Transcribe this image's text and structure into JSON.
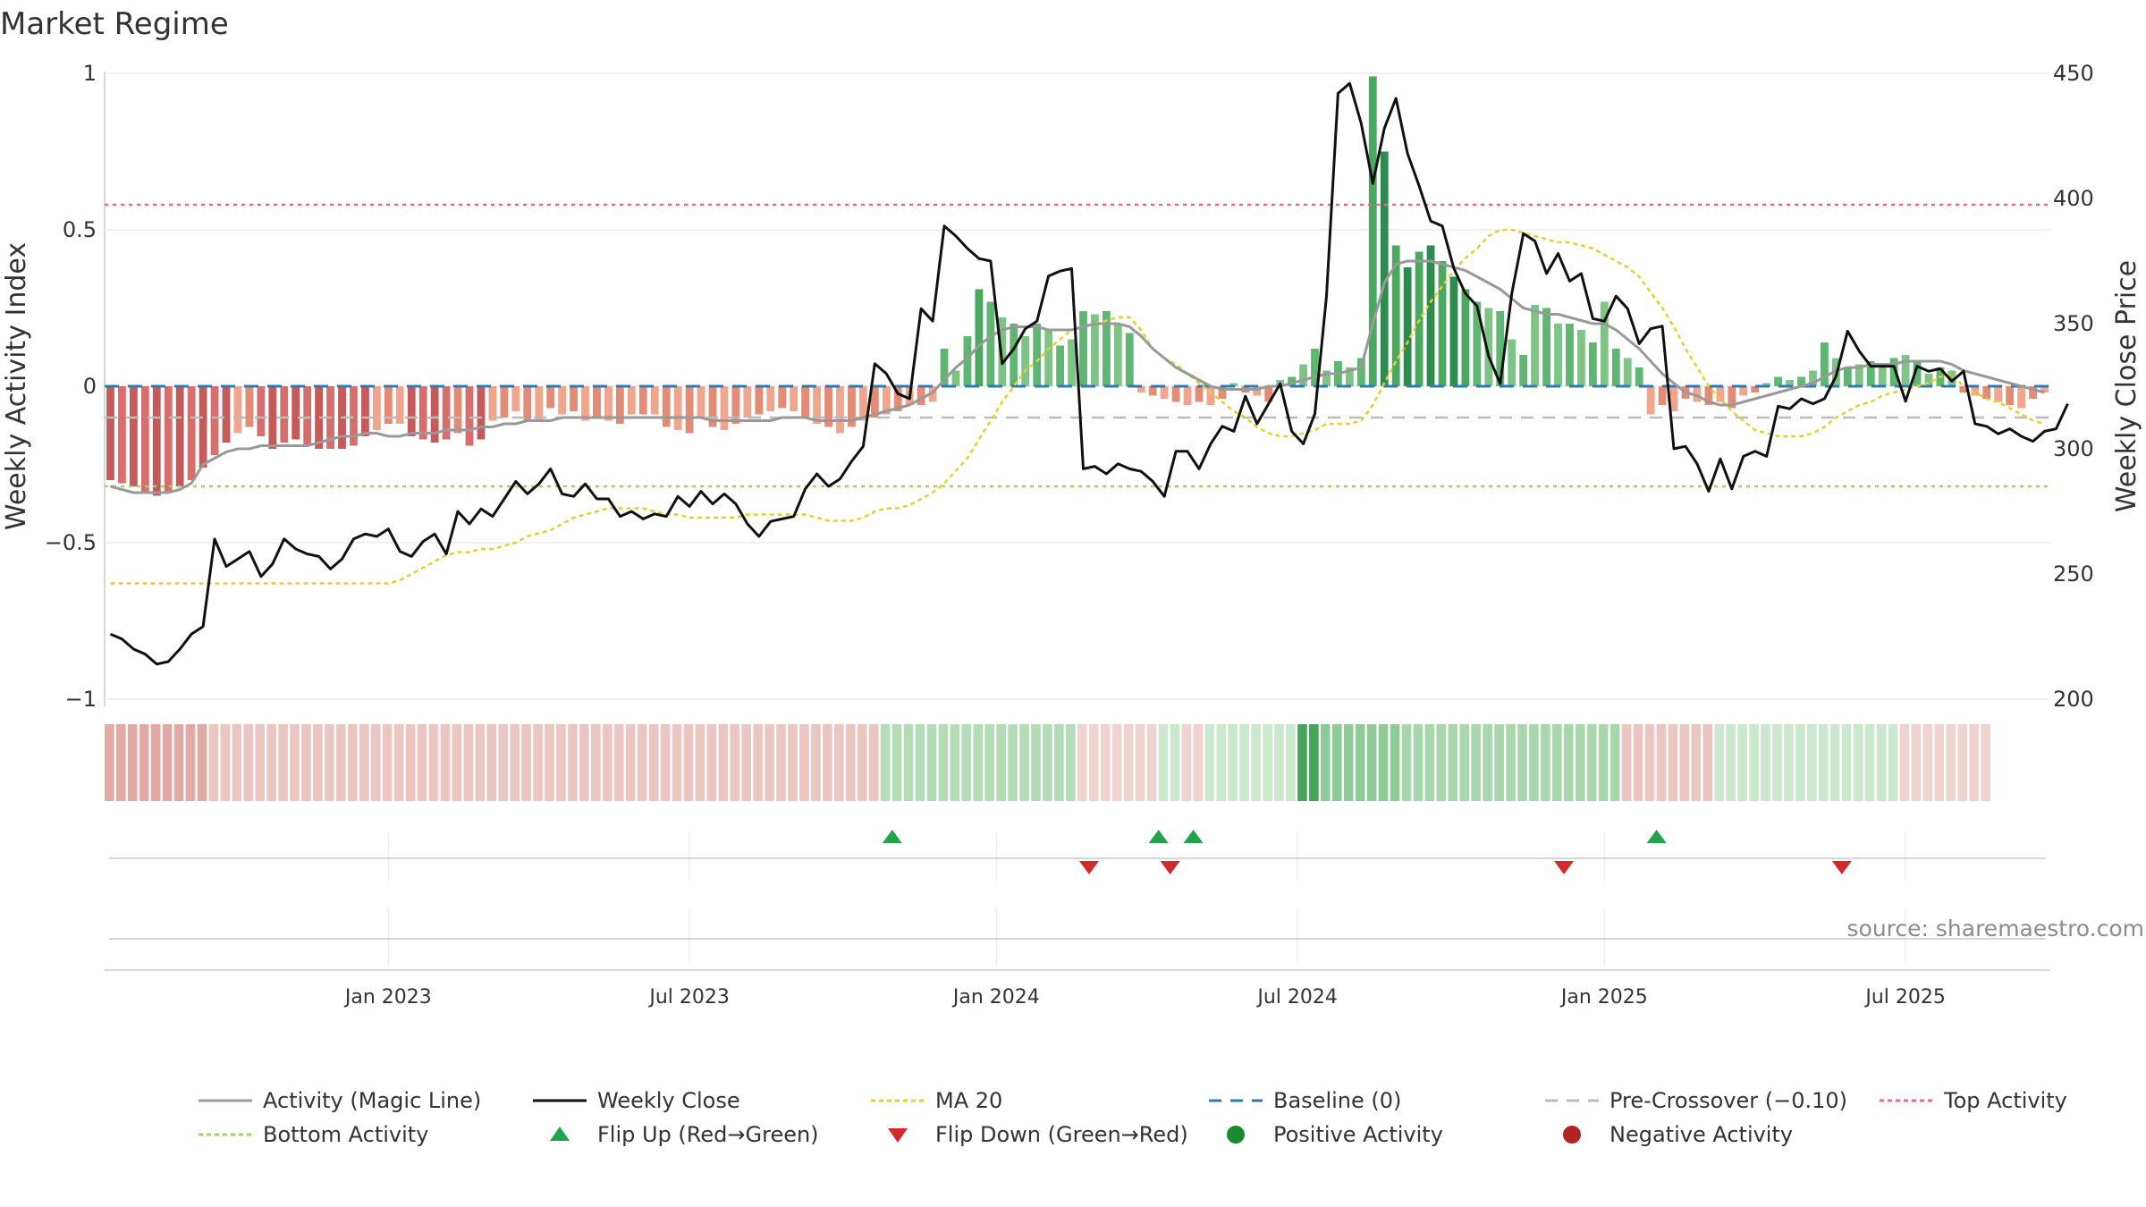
{
  "title": "Market Regime",
  "source": "source: sharemaestro.com",
  "chart_data": {
    "type": "bar",
    "y_left_label": "Weekly Activity Index",
    "y_right_label": "Weekly Close Price",
    "y_left_ticks": [
      {
        "value": 1,
        "label": "1"
      },
      {
        "value": 0.5,
        "label": "0.5"
      },
      {
        "value": 0,
        "label": "0"
      },
      {
        "value": -0.5,
        "label": "−0.5"
      },
      {
        "value": -1,
        "label": "−1"
      }
    ],
    "y_right_ticks": [
      {
        "value": 450,
        "label": "450"
      },
      {
        "value": 400,
        "label": "400"
      },
      {
        "value": 350,
        "label": "350"
      },
      {
        "value": 300,
        "label": "300"
      },
      {
        "value": 250,
        "label": "250"
      },
      {
        "value": 200,
        "label": "200"
      }
    ],
    "ylim_left": [
      -1.0,
      1.0
    ],
    "ylim_right": [
      200,
      450
    ],
    "x_ticks": [
      {
        "week": 24,
        "label": "Jan 2023"
      },
      {
        "week": 50,
        "label": "Jul 2023"
      },
      {
        "week": 76.5,
        "label": "Jan 2024"
      },
      {
        "week": 102.5,
        "label": "Jul 2024"
      },
      {
        "week": 129,
        "label": "Jan 2025"
      },
      {
        "week": 155,
        "label": "Jul 2025"
      }
    ],
    "reference_lines": {
      "top_activity": 0.58,
      "bottom_activity": -0.32,
      "pre_crossover": -0.1,
      "baseline": 0
    },
    "colors": {
      "activity_line": "#999999",
      "close": "#111111",
      "ma20": "#e6cf2e",
      "baseline": "#2c7bb6",
      "pre_crossover": "#bbbbbb",
      "top": "#f06292",
      "bottom": "#9ed46a",
      "flip_up": "#22a24a",
      "flip_down": "#d22a2a",
      "positive": "#1b8a2e",
      "negative": "#b22222"
    },
    "weekly_activity": [
      -0.3,
      -0.31,
      -0.32,
      -0.34,
      -0.35,
      -0.34,
      -0.32,
      -0.3,
      -0.26,
      -0.22,
      -0.18,
      -0.15,
      -0.13,
      -0.16,
      -0.2,
      -0.18,
      -0.17,
      -0.19,
      -0.2,
      -0.2,
      -0.2,
      -0.19,
      -0.16,
      -0.14,
      -0.12,
      -0.12,
      -0.16,
      -0.17,
      -0.18,
      -0.17,
      -0.15,
      -0.19,
      -0.17,
      -0.11,
      -0.1,
      -0.08,
      -0.11,
      -0.11,
      -0.07,
      -0.09,
      -0.08,
      -0.11,
      -0.1,
      -0.11,
      -0.12,
      -0.09,
      -0.09,
      -0.09,
      -0.13,
      -0.14,
      -0.15,
      -0.1,
      -0.13,
      -0.14,
      -0.12,
      -0.1,
      -0.09,
      -0.08,
      -0.07,
      -0.08,
      -0.1,
      -0.12,
      -0.13,
      -0.15,
      -0.13,
      -0.11,
      -0.1,
      -0.09,
      -0.08,
      -0.06,
      -0.06,
      -0.05,
      0.12,
      0.05,
      0.16,
      0.31,
      0.27,
      0.22,
      0.2,
      0.16,
      0.2,
      0.18,
      0.13,
      0.15,
      0.24,
      0.23,
      0.24,
      0.2,
      0.17,
      -0.02,
      -0.03,
      -0.04,
      -0.05,
      -0.06,
      -0.05,
      -0.06,
      -0.04,
      0.01,
      -0.02,
      -0.03,
      -0.05,
      0.02,
      0.03,
      0.07,
      0.12,
      0.05,
      0.08,
      0.06,
      0.09,
      0.99,
      0.75,
      0.45,
      0.38,
      0.43,
      0.45,
      0.4,
      0.35,
      0.31,
      0.27,
      0.25,
      0.24,
      0.15,
      0.1,
      0.26,
      0.25,
      0.2,
      0.2,
      0.18,
      0.14,
      0.27,
      0.12,
      0.09,
      0.06,
      -0.09,
      -0.06,
      -0.08,
      -0.04,
      -0.05,
      -0.06,
      -0.05,
      -0.07,
      -0.03,
      -0.02,
      0.01,
      0.03,
      0.02,
      0.03,
      0.05,
      0.14,
      0.09,
      0.06,
      0.07,
      0.08,
      0.06,
      0.09,
      0.1,
      0.08,
      0.04,
      0.06,
      0.05,
      -0.02,
      -0.03,
      -0.04,
      -0.05,
      -0.06,
      -0.07,
      -0.04,
      -0.02
    ],
    "activity_magic_line": [
      -0.32,
      -0.33,
      -0.34,
      -0.34,
      -0.34,
      -0.34,
      -0.33,
      -0.31,
      -0.25,
      -0.23,
      -0.21,
      -0.2,
      -0.2,
      -0.19,
      -0.19,
      -0.19,
      -0.19,
      -0.19,
      -0.18,
      -0.17,
      -0.16,
      -0.16,
      -0.15,
      -0.15,
      -0.16,
      -0.16,
      -0.15,
      -0.15,
      -0.15,
      -0.14,
      -0.14,
      -0.14,
      -0.13,
      -0.13,
      -0.12,
      -0.12,
      -0.11,
      -0.11,
      -0.11,
      -0.1,
      -0.1,
      -0.1,
      -0.1,
      -0.1,
      -0.1,
      -0.1,
      -0.1,
      -0.1,
      -0.1,
      -0.1,
      -0.1,
      -0.1,
      -0.11,
      -0.11,
      -0.11,
      -0.11,
      -0.11,
      -0.11,
      -0.1,
      -0.1,
      -0.1,
      -0.11,
      -0.11,
      -0.11,
      -0.11,
      -0.1,
      -0.09,
      -0.08,
      -0.07,
      -0.06,
      -0.04,
      -0.02,
      0.02,
      0.06,
      0.09,
      0.13,
      0.16,
      0.18,
      0.19,
      0.19,
      0.19,
      0.18,
      0.18,
      0.18,
      0.19,
      0.2,
      0.2,
      0.2,
      0.19,
      0.16,
      0.12,
      0.09,
      0.06,
      0.04,
      0.02,
      0.0,
      -0.01,
      -0.01,
      -0.01,
      -0.01,
      0.0,
      0.0,
      0.01,
      0.02,
      0.03,
      0.04,
      0.04,
      0.05,
      0.06,
      0.2,
      0.33,
      0.39,
      0.4,
      0.4,
      0.4,
      0.39,
      0.38,
      0.37,
      0.35,
      0.33,
      0.31,
      0.28,
      0.25,
      0.24,
      0.23,
      0.23,
      0.22,
      0.21,
      0.2,
      0.2,
      0.18,
      0.15,
      0.12,
      0.08,
      0.04,
      0.01,
      -0.02,
      -0.03,
      -0.05,
      -0.06,
      -0.06,
      -0.05,
      -0.04,
      -0.03,
      -0.02,
      -0.01,
      0.0,
      0.01,
      0.03,
      0.05,
      0.06,
      0.06,
      0.07,
      0.07,
      0.07,
      0.08,
      0.08,
      0.08,
      0.08,
      0.07,
      0.05,
      0.04,
      0.03,
      0.02,
      0.01,
      0.0,
      -0.01,
      -0.02
    ],
    "ma20": [
      -0.63,
      -0.63,
      -0.63,
      -0.63,
      -0.63,
      -0.63,
      -0.63,
      -0.63,
      -0.63,
      -0.63,
      -0.63,
      -0.63,
      -0.63,
      -0.63,
      -0.63,
      -0.63,
      -0.63,
      -0.63,
      -0.63,
      -0.63,
      -0.63,
      -0.63,
      -0.63,
      -0.63,
      -0.63,
      -0.62,
      -0.6,
      -0.58,
      -0.56,
      -0.54,
      -0.53,
      -0.53,
      -0.52,
      -0.52,
      -0.51,
      -0.5,
      -0.48,
      -0.47,
      -0.46,
      -0.44,
      -0.42,
      -0.41,
      -0.4,
      -0.39,
      -0.39,
      -0.39,
      -0.39,
      -0.4,
      -0.41,
      -0.41,
      -0.42,
      -0.42,
      -0.42,
      -0.42,
      -0.42,
      -0.41,
      -0.41,
      -0.41,
      -0.41,
      -0.41,
      -0.41,
      -0.42,
      -0.43,
      -0.43,
      -0.43,
      -0.42,
      -0.4,
      -0.39,
      -0.39,
      -0.38,
      -0.36,
      -0.34,
      -0.31,
      -0.27,
      -0.23,
      -0.17,
      -0.11,
      -0.05,
      0.0,
      0.05,
      0.08,
      0.12,
      0.15,
      0.18,
      0.19,
      0.2,
      0.21,
      0.22,
      0.22,
      0.18,
      0.12,
      0.09,
      0.07,
      0.04,
      0.01,
      -0.02,
      -0.05,
      -0.08,
      -0.1,
      -0.13,
      -0.15,
      -0.16,
      -0.16,
      -0.15,
      -0.14,
      -0.12,
      -0.12,
      -0.12,
      -0.11,
      -0.06,
      0.01,
      0.08,
      0.14,
      0.21,
      0.27,
      0.32,
      0.37,
      0.41,
      0.44,
      0.48,
      0.5,
      0.5,
      0.49,
      0.48,
      0.47,
      0.46,
      0.46,
      0.45,
      0.44,
      0.42,
      0.4,
      0.38,
      0.35,
      0.3,
      0.25,
      0.19,
      0.12,
      0.06,
      0.0,
      -0.04,
      -0.08,
      -0.11,
      -0.14,
      -0.15,
      -0.16,
      -0.16,
      -0.16,
      -0.15,
      -0.13,
      -0.1,
      -0.08,
      -0.06,
      -0.05,
      -0.03,
      -0.02,
      -0.01,
      0.0,
      0.01,
      0.03,
      0.04,
      0.0,
      -0.02,
      -0.04,
      -0.05,
      -0.07,
      -0.09,
      -0.11,
      -0.12
    ],
    "weekly_close": [
      226,
      224,
      220,
      218,
      214,
      215,
      220,
      226,
      229,
      264,
      253,
      256,
      259,
      249,
      254,
      264,
      260,
      258,
      257,
      252,
      256,
      264,
      266,
      265,
      268,
      259,
      257,
      263,
      266,
      258,
      275,
      270,
      276,
      273,
      280,
      287,
      282,
      286,
      292,
      282,
      281,
      286,
      280,
      280,
      273,
      275,
      272,
      274,
      273,
      281,
      277,
      283,
      278,
      282,
      278,
      270,
      265,
      271,
      272,
      273,
      284,
      290,
      285,
      288,
      295,
      301,
      334,
      330,
      322,
      320,
      356,
      351,
      389,
      385,
      380,
      376,
      375,
      334,
      340,
      348,
      351,
      369,
      371,
      372,
      292,
      293,
      290,
      294,
      292,
      291,
      287,
      281,
      299,
      299,
      292,
      302,
      309,
      307,
      321,
      310,
      318,
      326,
      307,
      302,
      314,
      361,
      442,
      446,
      430,
      406,
      428,
      440,
      418,
      405,
      391,
      389,
      372,
      362,
      357,
      337,
      326,
      362,
      386,
      383,
      370,
      378,
      367,
      370,
      352,
      351,
      361,
      356,
      342,
      348,
      349,
      300,
      301,
      294,
      283,
      296,
      284,
      297,
      299,
      297,
      317,
      316,
      320,
      318,
      320,
      329,
      347,
      339,
      333,
      333,
      333,
      319,
      333,
      331,
      332,
      327,
      331,
      310,
      309,
      306,
      308,
      305,
      303,
      307,
      308,
      318
    ],
    "regime_strip": [
      -0.3,
      -0.3,
      -0.3,
      -0.3,
      -0.3,
      -0.3,
      -0.3,
      -0.3,
      -0.3,
      -0.15,
      -0.15,
      -0.15,
      -0.15,
      -0.15,
      -0.15,
      -0.15,
      -0.15,
      -0.15,
      -0.15,
      -0.15,
      -0.15,
      -0.15,
      -0.15,
      -0.15,
      -0.15,
      -0.15,
      -0.15,
      -0.15,
      -0.15,
      -0.15,
      -0.15,
      -0.15,
      -0.15,
      -0.15,
      -0.15,
      -0.15,
      -0.15,
      -0.15,
      -0.15,
      -0.15,
      -0.15,
      -0.15,
      -0.15,
      -0.15,
      -0.15,
      -0.15,
      -0.15,
      -0.15,
      -0.15,
      -0.15,
      -0.15,
      -0.15,
      -0.15,
      -0.15,
      -0.15,
      -0.15,
      -0.15,
      -0.15,
      -0.15,
      -0.15,
      -0.15,
      -0.15,
      -0.15,
      -0.15,
      -0.15,
      -0.15,
      -0.15,
      0.2,
      0.2,
      0.2,
      0.2,
      0.2,
      0.2,
      0.2,
      0.2,
      0.2,
      0.2,
      0.2,
      0.2,
      0.2,
      0.2,
      0.2,
      0.2,
      0.2,
      -0.1,
      -0.1,
      -0.1,
      -0.1,
      -0.1,
      -0.1,
      -0.1,
      0.12,
      0.12,
      -0.08,
      -0.08,
      0.12,
      0.12,
      0.12,
      0.12,
      0.12,
      0.12,
      0.12,
      0.12,
      0.9,
      0.9,
      0.45,
      0.45,
      0.45,
      0.45,
      0.45,
      0.45,
      0.45,
      0.3,
      0.3,
      0.3,
      0.3,
      0.3,
      0.3,
      0.3,
      0.3,
      0.3,
      0.3,
      0.3,
      0.3,
      0.3,
      0.3,
      0.3,
      0.3,
      0.3,
      0.3,
      0.3,
      -0.15,
      -0.15,
      -0.15,
      -0.15,
      -0.15,
      -0.15,
      -0.15,
      -0.15,
      0.15,
      0.15,
      0.15,
      0.15,
      0.15,
      0.15,
      0.15,
      0.15,
      0.15,
      0.15,
      0.15,
      0.15,
      0.15,
      0.15,
      0.15,
      0.15,
      -0.1,
      -0.1,
      -0.1,
      -0.1,
      -0.1,
      -0.1,
      -0.1,
      -0.1
    ],
    "flip_up_weeks": [
      67.5,
      90.5,
      93.5,
      133.5
    ],
    "flip_down_weeks": [
      84.5,
      91.5,
      125.5,
      149.5
    ],
    "legend": [
      {
        "label": "Activity (Magic Line)",
        "kind": "line-solid",
        "color": "#999999"
      },
      {
        "label": "Weekly Close",
        "kind": "line-solid",
        "color": "#111111"
      },
      {
        "label": "MA 20",
        "kind": "line-dotted",
        "color": "#e6cf2e"
      },
      {
        "label": "Baseline (0)",
        "kind": "line-dashed",
        "color": "#2c7bb6"
      },
      {
        "label": "Pre-Crossover (−0.10)",
        "kind": "line-dashed",
        "color": "#bbbbbb"
      },
      {
        "label": "Top Activity",
        "kind": "line-dotted",
        "color": "#f06292"
      },
      {
        "label": "Bottom Activity",
        "kind": "line-dotted",
        "color": "#9ed46a"
      },
      {
        "label": "Flip Up (Red→Green)",
        "kind": "triangle-up",
        "color": "#22a24a"
      },
      {
        "label": "Flip Down (Green→Red)",
        "kind": "triangle-down",
        "color": "#d22a2a"
      },
      {
        "label": "Positive Activity",
        "kind": "dot",
        "color": "#1b8a2e"
      },
      {
        "label": "Negative Activity",
        "kind": "dot",
        "color": "#b22222"
      }
    ]
  }
}
